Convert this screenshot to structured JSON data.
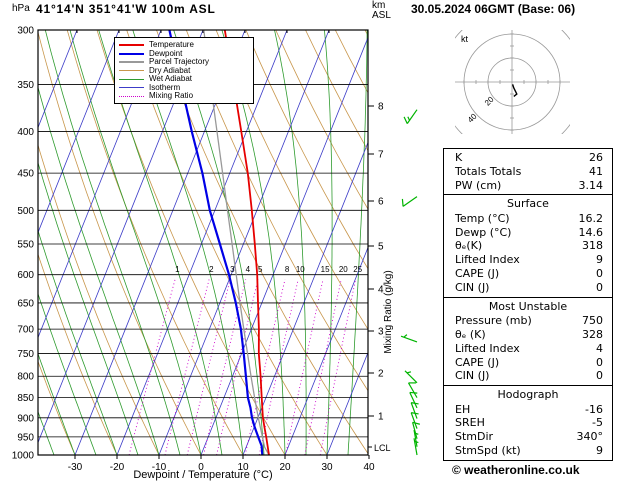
{
  "header": {
    "pressure_unit": "hPa",
    "station": "41°14'N 351°41'W 100m ASL",
    "km_label": "km",
    "asl_label": "ASL",
    "datetime": "30.05.2024 06GMT (Base: 06)"
  },
  "colors": {
    "temperature": "#e60000",
    "dewpoint": "#0000e6",
    "parcel": "#999999",
    "dry_adiabat": "#c8964b",
    "wet_adiabat": "#2e9b2e",
    "isotherm": "#3c3cc8",
    "mixing_ratio": "#cc00cc",
    "wind_barb": "#00b400"
  },
  "legend": [
    {
      "label": "Temperature",
      "color": "#e60000",
      "width": 2,
      "dash": "solid"
    },
    {
      "label": "Dewpoint",
      "color": "#0000e6",
      "width": 2,
      "dash": "solid"
    },
    {
      "label": "Parcel Trajectory",
      "color": "#999999",
      "width": 2,
      "dash": "solid"
    },
    {
      "label": "Dry Adiabat",
      "color": "#c8964b",
      "width": 1,
      "dash": "solid"
    },
    {
      "label": "Wet Adiabat",
      "color": "#2e9b2e",
      "width": 1,
      "dash": "solid"
    },
    {
      "label": "Isotherm",
      "color": "#3c3cc8",
      "width": 1,
      "dash": "solid"
    },
    {
      "label": "Mixing Ratio",
      "color": "#cc00cc",
      "width": 1,
      "dash": "dotted"
    }
  ],
  "chart_data": {
    "type": "line",
    "variant": "skew-t-log-p-sounding",
    "xlabel": "Dewpoint / Temperature (°C)",
    "ylabel": "hPa",
    "x_ticks": [
      -30,
      -20,
      -10,
      0,
      10,
      20,
      30,
      40
    ],
    "pressure_levels": [
      300,
      350,
      400,
      450,
      500,
      550,
      600,
      650,
      700,
      750,
      800,
      850,
      900,
      950,
      1000
    ],
    "km_ticks": [
      8,
      7,
      6,
      5,
      4,
      3,
      2,
      1
    ],
    "lcl_label": "LCL",
    "mixing_ratio_label": "Mixing Ratio (g/kg)",
    "mixing_ratio_values": [
      1,
      2,
      3,
      4,
      5,
      8,
      10,
      15,
      20,
      25
    ],
    "series": [
      {
        "key": "temperature",
        "name": "Temperature",
        "points": [
          [
            1000,
            16.2
          ],
          [
            950,
            13.8
          ],
          [
            925,
            12.5
          ],
          [
            900,
            11.2
          ],
          [
            850,
            9.0
          ],
          [
            800,
            6.7
          ],
          [
            750,
            4.1
          ],
          [
            700,
            1.8
          ],
          [
            650,
            -0.9
          ],
          [
            600,
            -3.8
          ],
          [
            550,
            -7.3
          ],
          [
            500,
            -11.2
          ],
          [
            450,
            -15.7
          ],
          [
            400,
            -21.2
          ],
          [
            350,
            -27.5
          ],
          [
            300,
            -34.8
          ]
        ]
      },
      {
        "key": "dewpoint",
        "name": "Dewpoint",
        "points": [
          [
            1000,
            14.6
          ],
          [
            975,
            13.6
          ],
          [
            950,
            11.9
          ],
          [
            925,
            10.2
          ],
          [
            900,
            8.6
          ],
          [
            875,
            7.3
          ],
          [
            850,
            5.7
          ],
          [
            800,
            3.2
          ],
          [
            750,
            0.5
          ],
          [
            700,
            -2.5
          ],
          [
            650,
            -6.2
          ],
          [
            600,
            -10.5
          ],
          [
            550,
            -15.6
          ],
          [
            500,
            -21.2
          ],
          [
            450,
            -26.5
          ],
          [
            400,
            -33.0
          ],
          [
            350,
            -40.0
          ],
          [
            300,
            -48.0
          ]
        ]
      },
      {
        "key": "parcel",
        "name": "Parcel Trajectory",
        "points": [
          [
            1000,
            16.2
          ],
          [
            978,
            14.4
          ],
          [
            950,
            12.9
          ],
          [
            900,
            10.1
          ],
          [
            850,
            7.3
          ],
          [
            800,
            4.4
          ],
          [
            750,
            1.4
          ],
          [
            700,
            -1.8
          ],
          [
            650,
            -5.2
          ],
          [
            600,
            -8.8
          ],
          [
            550,
            -12.7
          ],
          [
            500,
            -17.0
          ],
          [
            450,
            -21.7
          ],
          [
            400,
            -27.0
          ],
          [
            350,
            -33.0
          ],
          [
            300,
            -39.8
          ]
        ]
      }
    ],
    "wind_barbs": [
      {
        "p": 376,
        "kt": 15,
        "dir": 215
      },
      {
        "p": 481,
        "kt": 10,
        "dir": 235
      },
      {
        "p": 726,
        "kt": 5,
        "dir": 290
      },
      {
        "p": 815,
        "kt": 5,
        "dir": 315
      },
      {
        "p": 850,
        "kt": 10,
        "dir": 330
      },
      {
        "p": 875,
        "kt": 10,
        "dir": 335
      },
      {
        "p": 902,
        "kt": 10,
        "dir": 340
      },
      {
        "p": 928,
        "kt": 10,
        "dir": 340
      },
      {
        "p": 955,
        "kt": 10,
        "dir": 345
      },
      {
        "p": 977,
        "kt": 5,
        "dir": 350
      },
      {
        "p": 1000,
        "kt": 5,
        "dir": 350
      }
    ]
  },
  "hodograph": {
    "unit_label": "kt",
    "rings_kt": [
      20,
      40,
      60
    ],
    "ring_labels": [
      "20",
      "40"
    ],
    "trace": [
      [
        0.5,
        -2
      ],
      [
        1.5,
        -5
      ],
      [
        3,
        -8
      ],
      [
        4,
        -10
      ],
      [
        1.5,
        -12
      ]
    ]
  },
  "panel": {
    "sections": [
      {
        "title": null,
        "rows": [
          [
            "K",
            "26"
          ],
          [
            "Totals Totals",
            "41"
          ],
          [
            "PW (cm)",
            "3.14"
          ]
        ]
      },
      {
        "title": "Surface",
        "rows": [
          [
            "Temp (°C)",
            "16.2"
          ],
          [
            "Dewp (°C)",
            "14.6"
          ],
          [
            "θₑ(K)",
            "318"
          ],
          [
            "Lifted Index",
            "9"
          ],
          [
            "CAPE (J)",
            "0"
          ],
          [
            "CIN (J)",
            "0"
          ]
        ]
      },
      {
        "title": "Most Unstable",
        "rows": [
          [
            "Pressure (mb)",
            "750"
          ],
          [
            "θₑ (K)",
            "328"
          ],
          [
            "Lifted Index",
            "4"
          ],
          [
            "CAPE (J)",
            "0"
          ],
          [
            "CIN (J)",
            "0"
          ]
        ]
      },
      {
        "title": "Hodograph",
        "rows": [
          [
            "EH",
            "-16"
          ],
          [
            "SREH",
            "-5"
          ],
          [
            "StmDir",
            "340°"
          ],
          [
            "StmSpd (kt)",
            "9"
          ]
        ]
      }
    ]
  },
  "footer": {
    "copyright": "© weatheronline.co.uk"
  }
}
